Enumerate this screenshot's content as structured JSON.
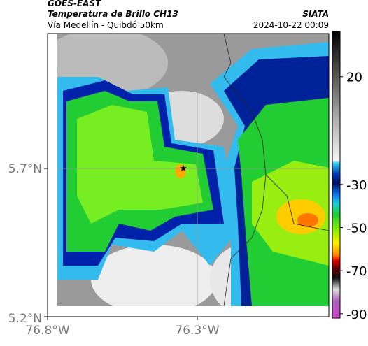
{
  "header": {
    "product": "GOES-EAST",
    "title": "Temperatura de Brillo CH13",
    "subtitle": "Vía Medellín - Quibdó 50km",
    "source": "SIATA",
    "timestamp": "2024-10-22 00:09"
  },
  "axes": {
    "x_labels": [
      "76.8°W",
      "76.3°W"
    ],
    "y_labels": [
      "5.7°N",
      "5.2°N"
    ]
  },
  "colorbar": {
    "range": [
      -92,
      41
    ],
    "ticks": [
      20,
      -30,
      -50,
      -70,
      -90
    ]
  }
}
